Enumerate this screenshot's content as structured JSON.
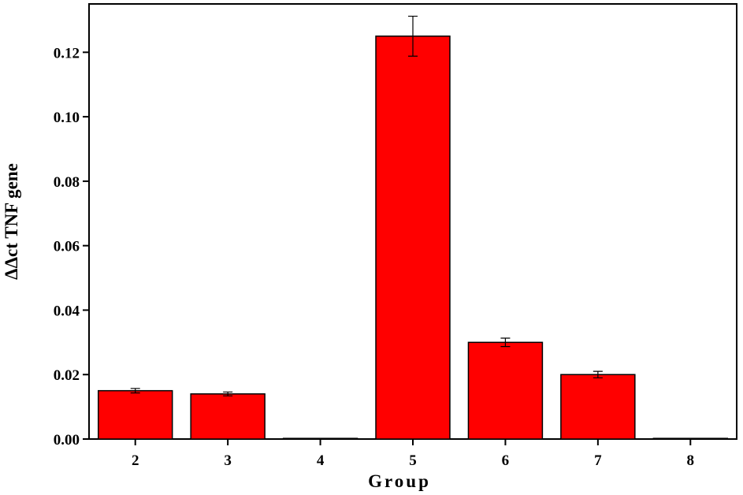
{
  "chart_data": {
    "type": "bar",
    "x_label": "Group",
    "y_label": "ΔΔct TNF gene",
    "categories": [
      "2",
      "3",
      "4",
      "5",
      "6",
      "7",
      "8"
    ],
    "values": [
      0.015,
      0.014,
      0.0002,
      0.125,
      0.03,
      0.02,
      0.0002
    ],
    "errors": [
      0.0007,
      0.0006,
      0,
      0.0062,
      0.0013,
      0.001,
      0
    ],
    "color": "#ff0000",
    "ylim": [
      0,
      0.135
    ],
    "yticks": [
      {
        "value": 0,
        "label": "0.00"
      },
      {
        "value": 0.02,
        "label": "0.02"
      },
      {
        "value": 0.04,
        "label": "0.04"
      },
      {
        "value": 0.06,
        "label": "0.06"
      },
      {
        "value": 0.08,
        "label": "0.08"
      },
      {
        "value": 0.1,
        "label": "0.10"
      },
      {
        "value": 0.12,
        "label": "0.12"
      }
    ]
  }
}
